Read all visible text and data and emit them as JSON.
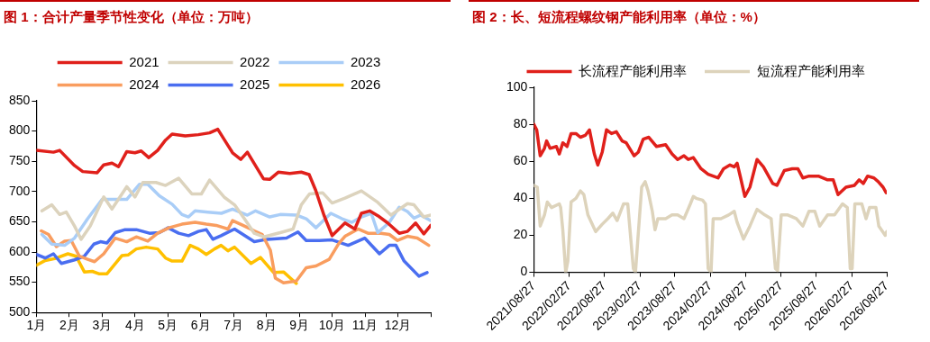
{
  "chart_data": [
    {
      "type": "line",
      "title": "图 1：合计产量季节性变化（单位：万吨）",
      "legend": "top",
      "grid": false,
      "marker": "none",
      "line_style": "solid",
      "xlim": [
        1,
        13
      ],
      "xticks": [
        {
          "value": 1,
          "label": "1月"
        },
        {
          "value": 2,
          "label": "2月"
        },
        {
          "value": 3,
          "label": "3月"
        },
        {
          "value": 4,
          "label": "4月"
        },
        {
          "value": 5,
          "label": "5月"
        },
        {
          "value": 6,
          "label": "6月"
        },
        {
          "value": 7,
          "label": "7月"
        },
        {
          "value": 8,
          "label": "8月"
        },
        {
          "value": 9,
          "label": "9月"
        },
        {
          "value": 10,
          "label": "10月"
        },
        {
          "value": 11,
          "label": "11月"
        },
        {
          "value": 12,
          "label": "12月"
        },
        {
          "value": 13,
          "label": null
        }
      ],
      "ylim": [
        500,
        850
      ],
      "yticks": [
        500,
        550,
        600,
        650,
        700,
        750,
        800,
        850
      ],
      "series": [
        {
          "name": "2021",
          "color": "#e0201b",
          "x": [
            1.0,
            1.52,
            1.71,
            2.16,
            2.41,
            2.85,
            3.05,
            3.3,
            3.5,
            3.75,
            4.0,
            4.19,
            4.42,
            4.69,
            4.93,
            5.13,
            5.53,
            5.93,
            6.27,
            6.52,
            6.97,
            7.22,
            7.42,
            7.91,
            8.1,
            8.36,
            8.71,
            9.06,
            9.3,
            9.5,
            9.75,
            10.0,
            10.39,
            10.69,
            10.89,
            11.14,
            11.39,
            11.69,
            12.04,
            12.29,
            12.54,
            12.79,
            13.0
          ],
          "values": [
            768,
            765,
            768,
            743,
            733,
            731,
            744,
            747,
            741,
            766,
            764,
            767,
            756,
            768,
            785,
            795,
            792,
            794,
            797,
            803,
            764,
            753,
            765,
            721,
            720,
            732,
            730,
            732,
            728,
            702,
            661,
            627,
            648,
            638,
            664,
            668,
            660,
            648,
            631,
            634,
            648,
            630,
            644
          ]
        },
        {
          "name": "2022",
          "color": "#dcd3bd",
          "x": [
            1.17,
            1.47,
            1.71,
            1.91,
            2.16,
            2.36,
            2.64,
            3.05,
            3.3,
            3.75,
            4.0,
            4.24,
            4.64,
            4.93,
            5.33,
            5.73,
            6.02,
            6.27,
            6.73,
            7.03,
            7.33,
            7.63,
            7.92,
            8.42,
            8.81,
            9.06,
            9.31,
            9.71,
            10.0,
            10.39,
            10.89,
            11.39,
            11.79,
            12.29,
            12.49,
            12.79,
            13.0
          ],
          "values": [
            668,
            678,
            662,
            666,
            643,
            621,
            643,
            691,
            671,
            708,
            691,
            715,
            715,
            710,
            722,
            696,
            696,
            719,
            690,
            678,
            655,
            631,
            625,
            632,
            638,
            678,
            696,
            698,
            681,
            689,
            701,
            682,
            661,
            680,
            678,
            658,
            661
          ]
        },
        {
          "name": "2023",
          "color": "#a9cdf7",
          "x": [
            1.17,
            1.47,
            1.86,
            2.16,
            2.56,
            3.0,
            3.55,
            3.75,
            4.14,
            4.39,
            4.74,
            5.13,
            5.43,
            5.63,
            5.83,
            6.22,
            6.63,
            6.97,
            7.42,
            7.67,
            8.1,
            8.42,
            8.91,
            9.21,
            9.51,
            9.96,
            10.3,
            10.6,
            10.89,
            11.19,
            11.39,
            11.74,
            12.04,
            12.29,
            12.49,
            12.69,
            12.99
          ],
          "values": [
            629,
            613,
            611,
            623,
            655,
            687,
            687,
            687,
            712,
            712,
            693,
            679,
            662,
            658,
            668,
            666,
            664,
            671,
            661,
            668,
            658,
            662,
            661,
            655,
            640,
            664,
            655,
            649,
            658,
            664,
            632,
            649,
            674,
            667,
            656,
            661,
            652
          ]
        },
        {
          "name": "2024",
          "color": "#f99d5f",
          "x": [
            1.15,
            1.37,
            1.61,
            1.86,
            2.06,
            2.31,
            2.56,
            2.77,
            3.05,
            3.4,
            3.75,
            4.04,
            4.39,
            4.69,
            5.03,
            5.43,
            5.83,
            6.17,
            6.47,
            6.83,
            6.97,
            7.33,
            7.63,
            7.87,
            8.12,
            8.27,
            8.52,
            8.91,
            9.21,
            9.51,
            9.91,
            10.2,
            10.39,
            10.79,
            11.09,
            11.49,
            11.74,
            11.99,
            12.29,
            12.59,
            12.94
          ],
          "values": [
            635,
            629,
            609,
            618,
            619,
            593,
            588,
            584,
            597,
            623,
            617,
            625,
            618,
            631,
            640,
            646,
            649,
            646,
            644,
            638,
            652,
            643,
            635,
            629,
            603,
            557,
            549,
            552,
            574,
            577,
            588,
            614,
            626,
            638,
            631,
            631,
            629,
            619,
            626,
            623,
            611
          ]
        },
        {
          "name": "2025",
          "color": "#4a6ef0",
          "x": [
            1.0,
            1.27,
            1.52,
            1.76,
            2.16,
            2.46,
            2.75,
            2.95,
            3.15,
            3.4,
            3.7,
            4.04,
            4.44,
            4.74,
            5.01,
            5.33,
            5.63,
            5.93,
            6.17,
            6.37,
            6.62,
            7.03,
            7.63,
            8.02,
            8.61,
            8.96,
            9.21,
            9.61,
            10.0,
            10.49,
            10.99,
            11.44,
            11.74,
            11.94,
            12.19,
            12.64,
            12.89
          ],
          "values": [
            596,
            590,
            597,
            581,
            587,
            593,
            613,
            617,
            615,
            632,
            637,
            637,
            631,
            632,
            640,
            631,
            627,
            634,
            637,
            621,
            627,
            638,
            617,
            621,
            623,
            633,
            619,
            619,
            620,
            611,
            623,
            597,
            611,
            611,
            585,
            560,
            566
          ]
        },
        {
          "name": "2026",
          "color": "#ffc000",
          "x": [
            1.0,
            1.27,
            1.56,
            1.96,
            2.21,
            2.46,
            2.7,
            2.9,
            3.15,
            3.6,
            3.79,
            4.04,
            4.34,
            4.69,
            4.93,
            5.13,
            5.43,
            5.68,
            5.93,
            6.17,
            6.42,
            6.62,
            6.83,
            7.03,
            7.53,
            7.82,
            8.22,
            8.52,
            8.91
          ],
          "values": [
            578,
            586,
            589,
            597,
            593,
            567,
            568,
            564,
            564,
            594,
            595,
            605,
            608,
            605,
            590,
            585,
            585,
            611,
            605,
            596,
            605,
            611,
            602,
            608,
            581,
            591,
            566,
            567,
            548
          ]
        }
      ]
    },
    {
      "type": "line",
      "title": "图 2：长、短流程螺纹钢产能利用率（单位：%）",
      "legend": "top",
      "grid": false,
      "marker": "none",
      "line_style": "solid",
      "xlim": [
        "2021-08-27",
        "2026-08-27"
      ],
      "xticks": [
        {
          "value": "2021-08-27",
          "label": "2021/08/27"
        },
        {
          "value": "2022-02-27",
          "label": "2022/02/27"
        },
        {
          "value": "2022-08-27",
          "label": "2022/08/27"
        },
        {
          "value": "2023-02-27",
          "label": "2023/02/27"
        },
        {
          "value": "2023-08-27",
          "label": "2023/08/27"
        },
        {
          "value": "2024-02-27",
          "label": "2024/02/27"
        },
        {
          "value": "2024-08-27",
          "label": "2024/08/27"
        },
        {
          "value": "2025-02-27",
          "label": "2025/02/27"
        },
        {
          "value": "2025-08-27",
          "label": "2025/08/27"
        },
        {
          "value": "2026-02-27",
          "label": "2026/02/27"
        },
        {
          "value": "2026-08-27",
          "label": "2026/08/27"
        }
      ],
      "ylim": [
        0,
        100
      ],
      "yticks": [
        0,
        20,
        40,
        60,
        80,
        100
      ],
      "series": [
        {
          "name": "长流程产能利用率",
          "color": "#e0201b",
          "x": [
            "2021-08-27",
            "2021-09-11",
            "2021-09-29",
            "2021-10-21",
            "2021-11-01",
            "2021-11-19",
            "2021-12-22",
            "2022-01-06",
            "2022-01-24",
            "2022-02-15",
            "2022-03-08",
            "2022-04-02",
            "2022-04-25",
            "2022-05-20",
            "2022-06-11",
            "2022-07-06",
            "2022-07-24",
            "2022-08-16",
            "2022-09-07",
            "2022-10-03",
            "2022-10-28",
            "2022-11-27",
            "2022-12-18",
            "2023-01-28",
            "2023-02-19",
            "2023-03-16",
            "2023-04-14",
            "2023-05-24",
            "2023-07-10",
            "2023-08-12",
            "2023-09-10",
            "2023-10-13",
            "2023-11-04",
            "2023-11-30",
            "2024-01-09",
            "2024-02-15",
            "2024-04-06",
            "2024-05-05",
            "2024-06-07",
            "2024-06-29",
            "2024-07-14",
            "2024-08-01",
            "2024-08-23",
            "2024-09-18",
            "2024-10-25",
            "2024-11-27",
            "2025-01-14",
            "2025-02-05",
            "2025-03-15",
            "2025-04-25",
            "2025-05-24",
            "2025-06-19",
            "2025-07-21",
            "2025-09-07",
            "2025-10-25",
            "2025-11-23",
            "2025-12-18",
            "2026-01-28",
            "2026-03-13",
            "2026-04-06",
            "2026-04-28",
            "2026-05-20",
            "2026-06-22",
            "2026-07-14",
            "2026-08-08",
            "2026-08-24"
          ],
          "values": [
            80,
            77,
            63,
            67,
            71,
            67,
            68,
            64,
            70,
            68,
            75,
            75,
            73,
            74,
            77,
            64,
            58,
            65,
            77,
            75,
            76,
            71,
            70,
            63,
            65,
            72,
            73,
            68,
            69,
            64,
            61,
            63,
            61,
            62,
            56,
            53,
            51,
            56,
            58,
            57,
            59,
            51,
            41,
            46,
            61,
            57,
            48,
            47,
            55,
            56,
            56,
            51,
            52,
            52,
            50,
            50,
            42,
            46,
            47,
            50,
            48,
            52,
            51,
            49,
            46,
            43
          ]
        },
        {
          "name": "短流程产能利用率",
          "color": "#ddd3bb",
          "x": [
            "2021-08-27",
            "2021-09-14",
            "2021-09-29",
            "2021-10-21",
            "2021-11-05",
            "2021-11-27",
            "2022-01-06",
            "2022-01-13",
            "2022-01-24",
            "2022-02-08",
            "2022-02-19",
            "2022-03-08",
            "2022-04-02",
            "2022-04-25",
            "2022-05-13",
            "2022-06-03",
            "2022-07-13",
            "2022-08-16",
            "2022-09-14",
            "2022-10-10",
            "2022-11-01",
            "2022-12-04",
            "2022-12-26",
            "2023-01-24",
            "2023-02-04",
            "2023-02-15",
            "2023-03-08",
            "2023-03-26",
            "2023-04-10",
            "2023-05-02",
            "2023-05-16",
            "2023-05-31",
            "2023-07-10",
            "2023-08-12",
            "2023-09-10",
            "2023-10-13",
            "2023-11-15",
            "2023-11-30",
            "2023-12-15",
            "2024-01-17",
            "2024-02-01",
            "2024-02-15",
            "2024-03-01",
            "2024-03-12",
            "2024-04-21",
            "2024-05-31",
            "2024-06-29",
            "2024-07-14",
            "2024-08-16",
            "2024-09-18",
            "2024-10-25",
            "2024-12-04",
            "2025-01-06",
            "2025-01-28",
            "2025-02-08",
            "2025-02-27",
            "2025-04-02",
            "2025-05-16",
            "2025-06-19",
            "2025-07-21",
            "2025-08-20",
            "2025-09-14",
            "2025-10-25",
            "2025-11-30",
            "2026-01-10",
            "2026-02-04",
            "2026-02-19",
            "2026-03-01",
            "2026-03-15",
            "2026-04-20",
            "2026-05-12",
            "2026-05-30",
            "2026-07-02",
            "2026-07-17",
            "2026-08-19",
            "2026-08-27"
          ],
          "values": [
            47,
            46,
            25,
            31,
            38,
            35,
            37,
            35,
            23,
            0,
            6,
            38,
            40,
            44,
            42,
            31,
            22,
            26,
            29,
            32,
            28,
            37,
            37,
            2,
            0,
            16,
            46,
            49,
            44,
            33,
            23,
            29,
            29,
            31,
            31,
            29,
            37,
            41,
            40,
            39,
            37,
            2,
            0,
            29,
            29,
            31,
            33,
            27,
            18,
            25,
            34,
            31,
            29,
            2,
            1,
            31,
            31,
            29,
            25,
            33,
            33,
            25,
            31,
            31,
            37,
            35,
            2,
            2,
            37,
            37,
            29,
            35,
            35,
            25,
            20,
            22
          ]
        }
      ]
    }
  ]
}
